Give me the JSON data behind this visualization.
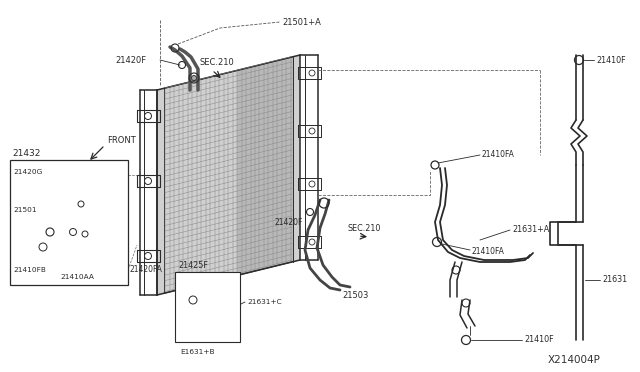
{
  "bg_color": "#ffffff",
  "line_color": "#2a2a2a",
  "diagram_id": "X214004P",
  "parts": {
    "21501A": "21501+A",
    "21420F_top": "21420F",
    "SEC210_top": "SEC.210",
    "21432": "21432",
    "21420G": "21420G",
    "21501": "21501",
    "21410FB": "21410FB",
    "21410AA": "21410AA",
    "21420FA": "21420FA",
    "21425F": "21425F",
    "21631C": "21631+C",
    "21631B": "E1631+B",
    "21420F_mid": "21420F",
    "21503": "21503",
    "SEC210_mid": "SEC.210",
    "21410FA_top": "21410FA",
    "21410F_tr": "21410F",
    "21631A": "21631+A",
    "21410FA_bot": "21410FA",
    "21631": "21631",
    "21410F_bot": "21410F"
  }
}
